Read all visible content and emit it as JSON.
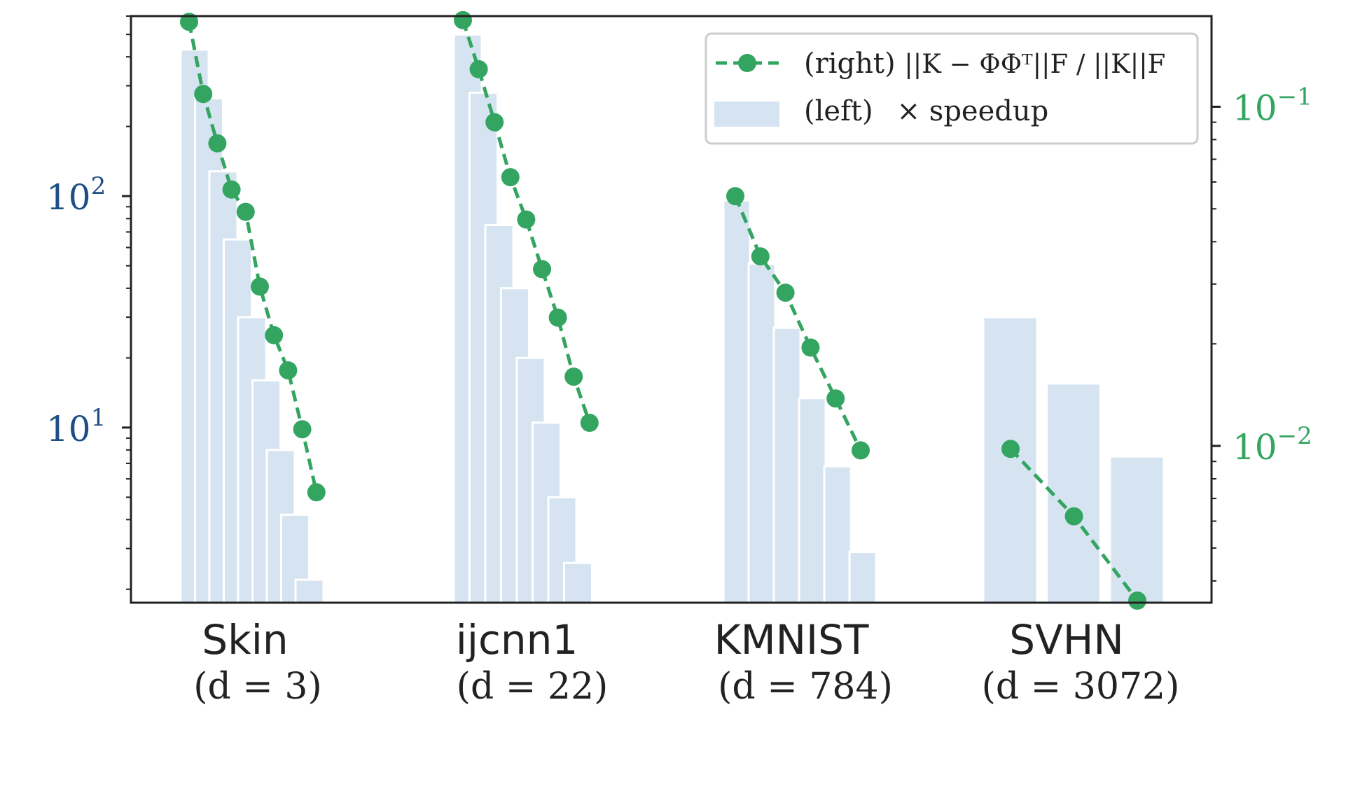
{
  "chart_data": {
    "type": "bar+line (dual log axis)",
    "colors": {
      "bar": "#d6e4f2",
      "line": "#33a561",
      "left_axis": "#1f4e85",
      "right_axis": "#33a561",
      "frame": "#222222"
    },
    "left_axis": {
      "scale": "log",
      "ylim": [
        1.75,
        600
      ],
      "ticks": [
        {
          "value": 10,
          "base": "10",
          "exp": "1"
        },
        {
          "value": 100,
          "base": "10",
          "exp": "2"
        }
      ]
    },
    "right_axis": {
      "scale": "log",
      "ylim": [
        0.00345,
        0.185
      ],
      "ticks": [
        {
          "value": 0.01,
          "base": "10",
          "exp": "−2"
        },
        {
          "value": 0.1,
          "base": "10",
          "exp": "−1"
        }
      ]
    },
    "legend": {
      "line_label_prefix": "(right) ",
      "line_label_formula": "||K − ΦΦᵀ||F / ||K||F",
      "bar_label_prefix": "(left)",
      "bar_label_text": "× speedup"
    },
    "groups": [
      {
        "name": "Skin",
        "subtitle": "(d = 3)",
        "speedup": [
          430,
          265,
          128,
          65,
          30,
          16,
          8,
          4.2,
          2.2
        ],
        "rel_error": [
          0.178,
          0.109,
          0.078,
          0.057,
          0.049,
          0.0295,
          0.0212,
          0.0167,
          0.0112,
          0.0073
        ]
      },
      {
        "name": "ijcnn1",
        "subtitle": "(d = 22)",
        "speedup": [
          500,
          280,
          75,
          40,
          20,
          10.5,
          5,
          2.6
        ],
        "rel_error": [
          0.18,
          0.129,
          0.09,
          0.062,
          0.0465,
          0.0332,
          0.0239,
          0.016,
          0.0117
        ]
      },
      {
        "name": "KMNIST",
        "subtitle": "(d = 784)",
        "speedup": [
          96,
          51,
          27,
          13.4,
          6.8,
          2.9
        ],
        "rel_error": [
          0.0545,
          0.0362,
          0.0283,
          0.0195,
          0.0138,
          0.0097
        ]
      },
      {
        "name": "SVHN",
        "subtitle": "(d = 3072)",
        "speedup": [
          30,
          15.5,
          7.5
        ],
        "rel_error": [
          0.0098,
          0.0062,
          0.0035
        ]
      }
    ]
  }
}
